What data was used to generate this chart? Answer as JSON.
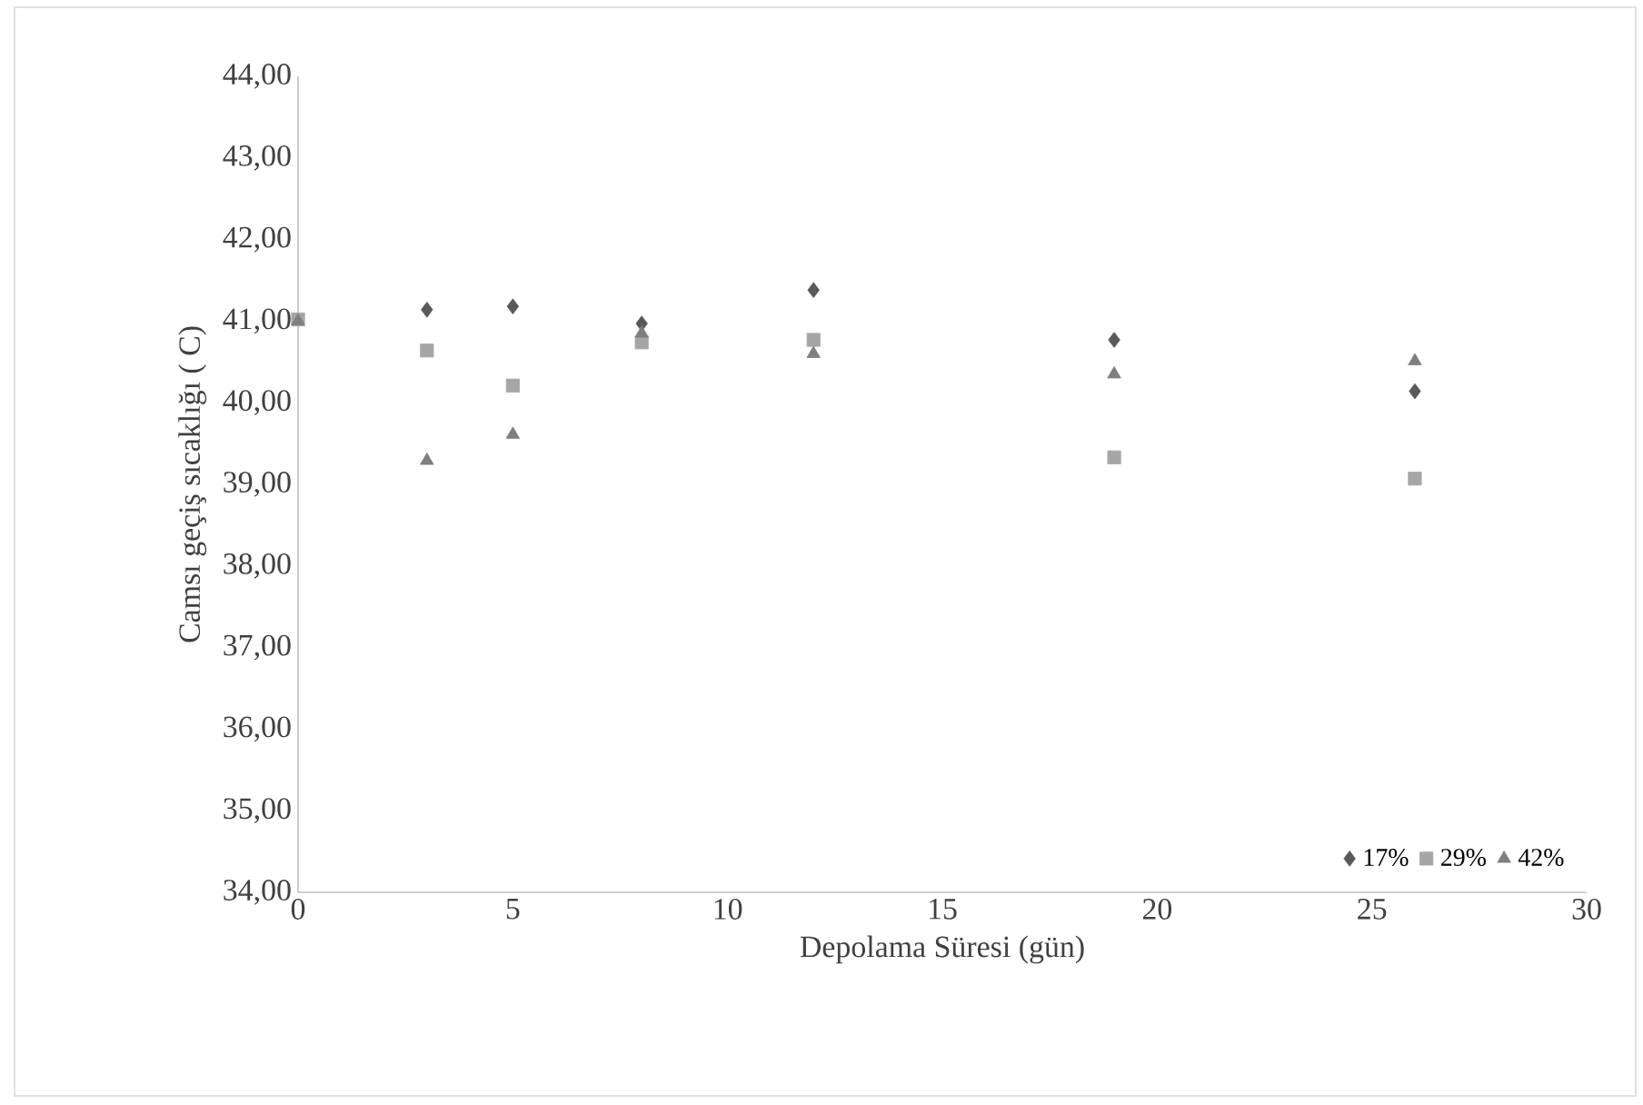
{
  "chart_data": {
    "type": "scatter",
    "xlabel": "Depolama Süresi (gün)",
    "ylabel": "Camsı geçiş sıcaklığı ( C)",
    "x": [
      0,
      3,
      5,
      8,
      12,
      19,
      26
    ],
    "series": [
      {
        "name": "17%",
        "color": "#595959",
        "marker": "diamond",
        "values": [
          null,
          41.14,
          41.18,
          40.97,
          41.38,
          40.77,
          40.14
        ]
      },
      {
        "name": "29%",
        "color": "#a6a6a6",
        "marker": "square",
        "values": [
          41.02,
          40.64,
          40.21,
          40.74,
          40.77,
          39.33,
          39.07
        ]
      },
      {
        "name": "42%",
        "color": "#7f7f7f",
        "marker": "triangle",
        "values": [
          41.0,
          39.29,
          39.61,
          40.85,
          40.6,
          40.35,
          40.51
        ]
      }
    ],
    "xlim": [
      0,
      30
    ],
    "xticks": [
      0,
      5,
      10,
      15,
      20,
      25,
      30
    ],
    "ylim": [
      34,
      44
    ],
    "yticks": [
      {
        "value": 34,
        "label": "34,00"
      },
      {
        "value": 35,
        "label": "35,00"
      },
      {
        "value": 36,
        "label": "36,00"
      },
      {
        "value": 37,
        "label": "37,00"
      },
      {
        "value": 38,
        "label": "38,00"
      },
      {
        "value": 39,
        "label": "39,00"
      },
      {
        "value": 40,
        "label": "40,00"
      },
      {
        "value": 41,
        "label": "41,00"
      },
      {
        "value": 42,
        "label": "42,00"
      },
      {
        "value": 43,
        "label": "43,00"
      },
      {
        "value": 44,
        "label": "44,00"
      }
    ],
    "grid": false,
    "legend": "bottom right"
  }
}
